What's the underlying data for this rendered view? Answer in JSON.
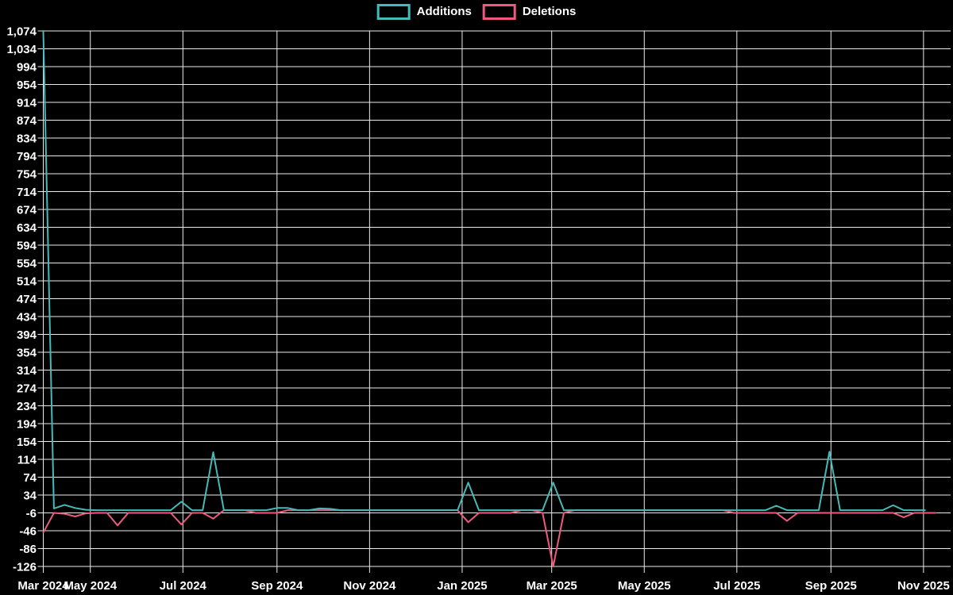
{
  "legend": {
    "additions_label": "Additions",
    "deletions_label": "Deletions"
  },
  "colors": {
    "additions": "#46b9b9",
    "deletions": "#ee5a7d",
    "grid": "#ececec",
    "text": "#ffffff",
    "background": "#000000"
  },
  "chart_data": {
    "type": "line",
    "title": "",
    "xlabel": "",
    "ylabel": "",
    "legend_position": "top",
    "grid": true,
    "y_axis": {
      "min": -126,
      "max": 1074,
      "step": 40,
      "tick_labels": [
        "1,074",
        "1,034",
        "994",
        "954",
        "914",
        "874",
        "834",
        "794",
        "754",
        "714",
        "674",
        "634",
        "594",
        "554",
        "514",
        "474",
        "434",
        "394",
        "354",
        "314",
        "274",
        "234",
        "194",
        "154",
        "114",
        "74",
        "34",
        "-6",
        "-46",
        "-86",
        "-126"
      ]
    },
    "x_axis": {
      "ticks": [
        {
          "label": "Mar 2024",
          "date": "2024-03-31"
        },
        {
          "label": "May 2024",
          "date": "2024-05-01"
        },
        {
          "label": "Jul 2024",
          "date": "2024-07-01"
        },
        {
          "label": "Sep 2024",
          "date": "2024-09-01"
        },
        {
          "label": "Nov 2024",
          "date": "2024-11-01"
        },
        {
          "label": "Jan 2025",
          "date": "2025-01-01"
        },
        {
          "label": "Mar 2025",
          "date": "2025-03-01"
        },
        {
          "label": "May 2025",
          "date": "2025-05-01"
        },
        {
          "label": "Jul 2025",
          "date": "2025-07-01"
        },
        {
          "label": "Sep 2025",
          "date": "2025-09-01"
        },
        {
          "label": "Nov 2025",
          "date": "2025-11-01"
        }
      ]
    },
    "start_date": "2024-03-31",
    "interval_days": 7,
    "series": [
      {
        "name": "Additions",
        "color_key": "additions",
        "values": [
          1074,
          4,
          12,
          5,
          1,
          0,
          0,
          0,
          0,
          0,
          0,
          0,
          0,
          19,
          0,
          0,
          130,
          0,
          0,
          0,
          0,
          0,
          5,
          5,
          0,
          0,
          4,
          3,
          0,
          0,
          0,
          0,
          0,
          0,
          0,
          0,
          0,
          0,
          0,
          0,
          62,
          0,
          0,
          0,
          0,
          0,
          0,
          0,
          62,
          0,
          0,
          0,
          0,
          0,
          0,
          0,
          0,
          0,
          0,
          0,
          0,
          0,
          0,
          0,
          0,
          0,
          0,
          0,
          0,
          10,
          0,
          0,
          0,
          0,
          131,
          0,
          0,
          0,
          0,
          0,
          11,
          0,
          0,
          0
        ]
      },
      {
        "name": "Deletions",
        "color_key": "deletions",
        "values": [
          -50,
          -6,
          -8,
          -14,
          -7,
          -6,
          -6,
          -34,
          -6,
          -6,
          -6,
          -6,
          -6,
          -32,
          -6,
          -6,
          -19,
          0,
          0,
          0,
          -6,
          -6,
          -6,
          0,
          0,
          0,
          0,
          0,
          0,
          0,
          0,
          0,
          0,
          0,
          0,
          0,
          0,
          0,
          0,
          0,
          -27,
          -6,
          -6,
          -6,
          -6,
          0,
          0,
          -6,
          -126,
          -6,
          0,
          0,
          0,
          0,
          0,
          0,
          0,
          0,
          0,
          0,
          0,
          0,
          0,
          0,
          0,
          -6,
          -6,
          -6,
          -6,
          -6,
          -24,
          -6,
          -6,
          -6,
          -6,
          -6,
          -6,
          -6,
          -6,
          -6,
          -6,
          -16,
          -6,
          -6,
          -6
        ]
      }
    ]
  }
}
